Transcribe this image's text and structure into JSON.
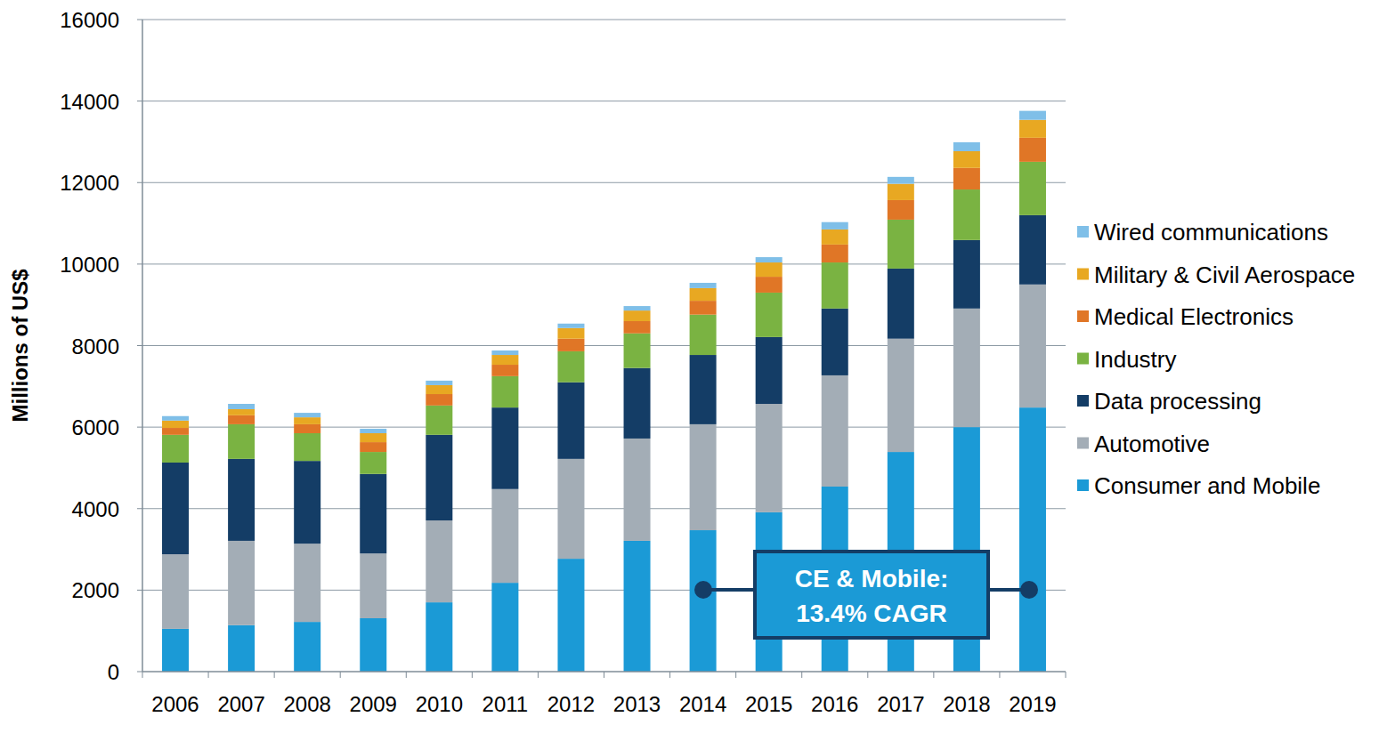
{
  "chart_data": {
    "type": "bar",
    "stacked": true,
    "grid": true,
    "legend": "right",
    "y_label": "Millions of US$",
    "annotations": [
      "CE & Mobile:",
      "13.4% CAGR"
    ],
    "categories": [
      "2006",
      "2007",
      "2008",
      "2009",
      "2010",
      "2011",
      "2012",
      "2013",
      "2014",
      "2015",
      "2016",
      "2017",
      "2018",
      "2019"
    ],
    "ylim": [
      0,
      16000
    ],
    "yticks": [
      0,
      2000,
      4000,
      6000,
      8000,
      10000,
      12000,
      14000,
      16000
    ],
    "series": [
      {
        "name": "Consumer and Mobile",
        "color": "#1b9ad6",
        "values": [
          1050,
          1140,
          1220,
          1310,
          1700,
          2180,
          2770,
          3210,
          3470,
          3910,
          4540,
          5390,
          6000,
          6480
        ]
      },
      {
        "name": "Automotive",
        "color": "#a3adb6",
        "values": [
          1830,
          2070,
          1920,
          1590,
          2010,
          2300,
          2450,
          2510,
          2600,
          2660,
          2730,
          2780,
          2910,
          3020
        ]
      },
      {
        "name": "Data processing",
        "color": "#143d66",
        "values": [
          2250,
          2010,
          2030,
          1950,
          2100,
          2000,
          1880,
          1730,
          1700,
          1640,
          1640,
          1720,
          1680,
          1700
        ]
      },
      {
        "name": "Industry",
        "color": "#7ab342",
        "values": [
          680,
          850,
          680,
          540,
          720,
          770,
          760,
          850,
          990,
          1090,
          1130,
          1200,
          1240,
          1310
        ]
      },
      {
        "name": "Medical Electronics",
        "color": "#e07626",
        "values": [
          170,
          220,
          220,
          240,
          280,
          280,
          310,
          300,
          340,
          390,
          440,
          480,
          530,
          590
        ]
      },
      {
        "name": "Military & Civil Aerospace",
        "color": "#e8a822",
        "values": [
          180,
          150,
          170,
          220,
          220,
          240,
          260,
          260,
          310,
          350,
          370,
          400,
          410,
          440
        ]
      },
      {
        "name": "Wired communications",
        "color": "#7fbfe8",
        "values": [
          110,
          130,
          110,
          110,
          110,
          110,
          110,
          110,
          130,
          130,
          180,
          170,
          220,
          220
        ]
      }
    ]
  }
}
